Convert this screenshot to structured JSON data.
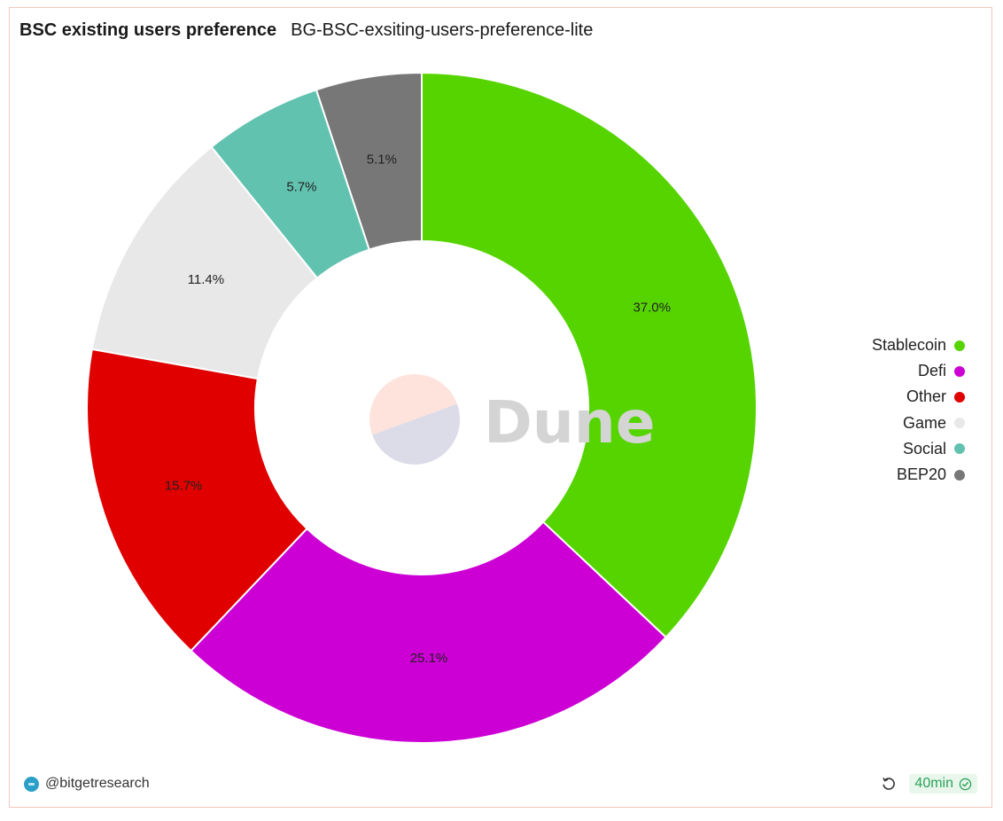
{
  "header": {
    "title": "BSC existing users preference",
    "subtitle": "BG-BSC-exsiting-users-preference-lite"
  },
  "chart_data": {
    "type": "pie",
    "donut": true,
    "categories": [
      "Stablecoin",
      "Defi",
      "Other",
      "Game",
      "Social",
      "BEP20"
    ],
    "values": [
      37.0,
      25.1,
      15.7,
      11.4,
      5.7,
      5.1
    ],
    "labels": [
      "37.0%",
      "25.1%",
      "15.7%",
      "11.4%",
      "5.7%",
      "5.1%"
    ],
    "colors": [
      "#56d400",
      "#cc00d4",
      "#e00000",
      "#e8e8e8",
      "#62c2b0",
      "#777777"
    ],
    "legend_position": "right"
  },
  "watermark": {
    "text": "Dune",
    "colors": [
      "#fde3dc",
      "#dcdbe8"
    ]
  },
  "footer": {
    "author": "@bitgetresearch",
    "avatar_icon": "bitget-avatar-icon",
    "refresh_icon": "refresh-icon",
    "refresh_time": "40min",
    "status_icon": "check-circle-icon",
    "status_color": "#2ca35a"
  }
}
